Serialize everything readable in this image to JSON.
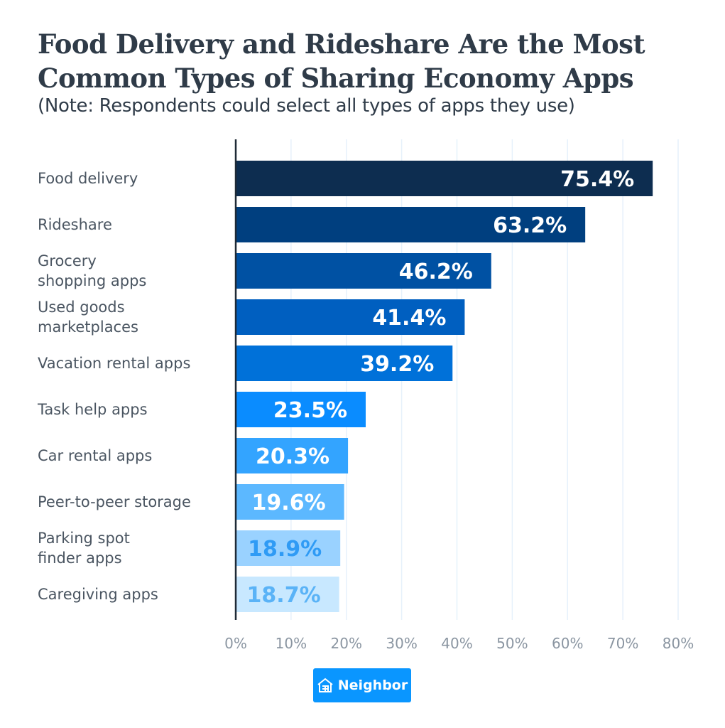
{
  "title_line1": "Food Delivery and Rideshare Are the Most",
  "title_line2": "Common Types of Sharing Economy Apps",
  "subtitle": "(Note: Respondents could select all types of apps they use)",
  "brand": "Neighbor",
  "brand_icon": "house-icon",
  "chart_data": {
    "type": "bar",
    "orientation": "horizontal",
    "title": "Food Delivery and Rideshare Are the Most Common Types of Sharing Economy Apps",
    "subtitle": "(Note: Respondents could select all types of apps they use)",
    "categories": [
      [
        "Food delivery"
      ],
      [
        "Rideshare"
      ],
      [
        "Grocery",
        "shopping apps"
      ],
      [
        "Used goods",
        "marketplaces"
      ],
      [
        "Vacation rental apps"
      ],
      [
        "Task help apps"
      ],
      [
        "Car rental apps"
      ],
      [
        "Peer-to-peer storage"
      ],
      [
        "Parking spot",
        "finder apps"
      ],
      [
        "Caregiving apps"
      ]
    ],
    "values": [
      75.4,
      63.2,
      46.2,
      41.4,
      39.2,
      23.5,
      20.3,
      19.6,
      18.9,
      18.7
    ],
    "data_labels": [
      "75.4%",
      "63.2%",
      "46.2%",
      "41.4%",
      "39.2%",
      "23.5%",
      "20.3%",
      "19.6%",
      "18.9%",
      "18.7%"
    ],
    "colors": [
      "#0d2d50",
      "#003f7f",
      "#0051a3",
      "#005fc0",
      "#0071d9",
      "#0a8cff",
      "#33a4ff",
      "#5cb8ff",
      "#9ad2ff",
      "#c8e8ff"
    ],
    "label_colors": [
      "#ffffff",
      "#ffffff",
      "#ffffff",
      "#ffffff",
      "#ffffff",
      "#ffffff",
      "#ffffff",
      "#ffffff",
      "#2f9bf5",
      "#5ab3f7"
    ],
    "xlim": [
      0,
      80
    ],
    "xticks": [
      "0%",
      "10%",
      "20%",
      "30%",
      "40%",
      "50%",
      "60%",
      "70%",
      "80%"
    ],
    "grid": true
  }
}
